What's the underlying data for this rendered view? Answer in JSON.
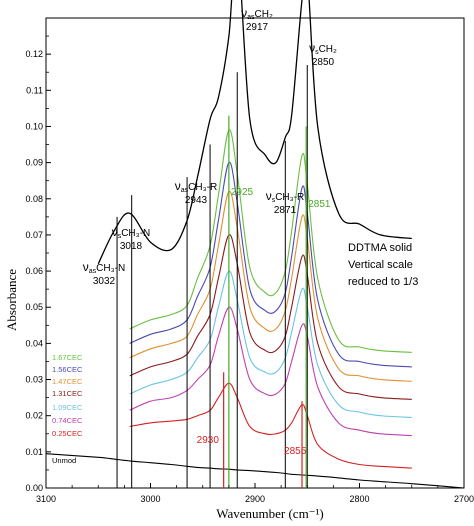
{
  "chart_data": {
    "type": "line",
    "xlabel": "Wavenumber (cm⁻¹)",
    "ylabel": "Absorbance",
    "xlim": [
      3100,
      2700
    ],
    "ylim": [
      0.0,
      0.13
    ],
    "x_reversed": true,
    "grid": false,
    "x_ticks": [
      "3100",
      "3000",
      "2900",
      "2800",
      "2700"
    ],
    "y_ticks": [
      "0.00",
      "0.01",
      "0.02",
      "0.03",
      "0.04",
      "0.05",
      "0.06",
      "0.07",
      "0.08",
      "0.09",
      "0.10",
      "0.11",
      "0.12"
    ],
    "x_values": [
      3100,
      3050,
      3035,
      3020,
      3000,
      2980,
      2965,
      2955,
      2943,
      2935,
      2925,
      2917,
      2905,
      2890,
      2880,
      2871,
      2865,
      2855,
      2850,
      2840,
      2820,
      2800,
      2780,
      2750,
      2700
    ],
    "series": [
      {
        "name": "Unmod",
        "color": "#000000",
        "values": [
          0.0095,
          0.0085,
          0.008,
          0.0075,
          0.007,
          0.0065,
          0.006,
          0.0057,
          0.0055,
          0.0053,
          0.0052,
          0.005,
          0.0048,
          0.0045,
          0.0043,
          0.004,
          0.0038,
          0.0036,
          0.0035,
          0.0033,
          0.0028,
          0.0022,
          0.0018,
          0.0012,
          0.0
        ]
      },
      {
        "name": "0.25CEC",
        "color": "#d62020",
        "values": [
          null,
          null,
          null,
          0.017,
          0.018,
          0.0185,
          0.019,
          0.02,
          0.0215,
          0.025,
          0.029,
          0.025,
          0.017,
          0.015,
          0.015,
          0.016,
          0.018,
          0.023,
          0.02,
          0.012,
          0.008,
          0.0065,
          0.006,
          0.0055,
          null
        ]
      },
      {
        "name": "0.74CEC",
        "color": "#c040b0",
        "values": [
          null,
          null,
          null,
          0.0215,
          0.024,
          0.025,
          0.027,
          0.03,
          0.034,
          0.042,
          0.05,
          0.044,
          0.03,
          0.026,
          0.026,
          0.029,
          0.035,
          0.045,
          0.042,
          0.028,
          0.018,
          0.016,
          0.015,
          0.0145,
          null
        ]
      },
      {
        "name": "1.09CEC",
        "color": "#6ac4e0",
        "values": [
          null,
          null,
          null,
          0.026,
          0.0285,
          0.03,
          0.032,
          0.036,
          0.041,
          0.05,
          0.06,
          0.052,
          0.036,
          0.032,
          0.032,
          0.036,
          0.043,
          0.055,
          0.05,
          0.034,
          0.023,
          0.021,
          0.02,
          0.0195,
          null
        ]
      },
      {
        "name": "1.31CEC",
        "color": "#8a1a1a",
        "values": [
          null,
          null,
          null,
          0.031,
          0.0335,
          0.035,
          0.037,
          0.042,
          0.048,
          0.058,
          0.07,
          0.062,
          0.043,
          0.038,
          0.038,
          0.042,
          0.05,
          0.064,
          0.059,
          0.04,
          0.028,
          0.026,
          0.025,
          0.0245,
          null
        ]
      },
      {
        "name": "1.47CEC",
        "color": "#e09030",
        "values": [
          null,
          null,
          null,
          0.036,
          0.0385,
          0.04,
          0.042,
          0.048,
          0.055,
          0.067,
          0.082,
          0.072,
          0.05,
          0.044,
          0.044,
          0.049,
          0.058,
          0.075,
          0.069,
          0.047,
          0.033,
          0.031,
          0.03,
          0.0295,
          null
        ]
      },
      {
        "name": "1.56CEC",
        "color": "#4a4ab0",
        "values": [
          null,
          null,
          null,
          0.04,
          0.0425,
          0.044,
          0.0465,
          0.053,
          0.061,
          0.074,
          0.09,
          0.079,
          0.055,
          0.049,
          0.049,
          0.054,
          0.064,
          0.083,
          0.076,
          0.052,
          0.037,
          0.035,
          0.034,
          0.0335,
          null
        ]
      },
      {
        "name": "1.67CEC",
        "color": "#6abf40",
        "values": [
          null,
          null,
          null,
          0.044,
          0.0465,
          0.048,
          0.0505,
          0.058,
          0.067,
          0.081,
          0.099,
          0.087,
          0.061,
          0.054,
          0.054,
          0.06,
          0.071,
          0.092,
          0.084,
          0.058,
          0.041,
          0.039,
          0.038,
          0.0375,
          null
        ]
      },
      {
        "name": "DDTMA solid",
        "color": "#000000",
        "values": [
          null,
          0.062,
          0.071,
          0.076,
          0.068,
          0.066,
          0.074,
          0.086,
          0.102,
          0.108,
          0.125,
          0.15,
          0.102,
          0.092,
          0.09,
          0.097,
          0.103,
          0.135,
          0.142,
          0.1,
          0.076,
          0.073,
          0.07,
          0.069,
          null
        ]
      }
    ],
    "series_labels": [
      "1.67CEC",
      "1.56CEC",
      "1.47CEC",
      "1.31CEC",
      "1.09CEC",
      "0.74CEC",
      "0.25CEC",
      "Unmod"
    ],
    "annotations": {
      "vas_ch3n": {
        "sub": "as",
        "main": "CH₃-N",
        "num": "3032",
        "x": 3032
      },
      "vs_ch3n": {
        "sub": "s",
        "main": "CH₃-N",
        "num": "3018",
        "x": 3018
      },
      "vas_ch3r": {
        "sub": "as",
        "main": "CH₃-R",
        "num": "2943",
        "x": 2943
      },
      "vas_ch2": {
        "sub": "as",
        "main": "CH₂",
        "num": "2917",
        "x": 2917
      },
      "vs_ch3r": {
        "sub": "s",
        "main": "CH₃-R",
        "num": "2871",
        "x": 2871
      },
      "vs_ch2": {
        "sub": "s",
        "main": "CH₂",
        "num": "2850",
        "x": 2850
      },
      "green_2925": {
        "text": "2925",
        "x": 2925
      },
      "green_2851": {
        "text": "2851",
        "x": 2851
      },
      "red_2930": {
        "text": "2930",
        "x": 2930
      },
      "red_2855": {
        "text": "2855",
        "x": 2855
      }
    },
    "note_lines": [
      "DDTMA solid",
      "Vertical scale",
      "reduced to 1/3"
    ],
    "nu": "ν"
  }
}
